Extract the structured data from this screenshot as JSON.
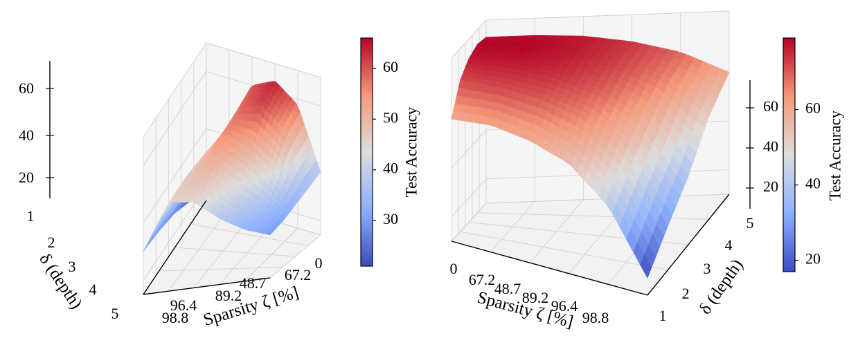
{
  "chart_data": [
    {
      "type": "surface3d",
      "zlabel": "",
      "xlabel": "Sparsity ζ [%]",
      "ylabel": "δ (depth)",
      "x_ticks": [
        "0",
        "67.2",
        "48.7",
        "89.2",
        "96.4",
        "98.8"
      ],
      "y_ticks": [
        "1",
        "2",
        "3",
        "4",
        "5"
      ],
      "z_ticks": [
        "20",
        "40",
        "60"
      ],
      "z_range": [
        15,
        70
      ],
      "colorbar": {
        "label": "Test Accuracy",
        "ticks": [
          "30",
          "40",
          "50",
          "60"
        ],
        "range": [
          21,
          66
        ]
      },
      "grid": true,
      "surface": {
        "x_index": [
          0,
          1,
          2,
          3,
          4,
          5
        ],
        "depth": [
          1,
          2,
          3,
          4,
          5
        ],
        "z": [
          [
            37,
            58,
            64,
            60,
            44,
            21
          ],
          [
            35,
            54,
            61,
            58,
            42,
            23
          ],
          [
            33,
            45,
            52,
            56,
            46,
            27
          ],
          [
            31,
            37,
            43,
            50,
            47,
            29
          ],
          [
            30,
            33,
            38,
            45,
            46,
            30
          ]
        ]
      }
    },
    {
      "type": "surface3d",
      "zlabel": "",
      "xlabel": "Sparsity ζ [%]",
      "ylabel": "δ (depth)",
      "x_ticks": [
        "0",
        "67.2",
        "48.7",
        "89.2",
        "96.4",
        "98.8"
      ],
      "y_ticks": [
        "1",
        "2",
        "3",
        "4",
        "5"
      ],
      "z_ticks": [
        "20",
        "40",
        "60"
      ],
      "z_range": [
        10,
        85
      ],
      "colorbar": {
        "label": "Test Accuracy",
        "ticks": [
          "20",
          "40",
          "60"
        ],
        "range": [
          17,
          79
        ]
      },
      "grid": true,
      "surface": {
        "x_index": [
          0,
          1,
          2,
          3,
          4,
          5
        ],
        "depth": [
          1,
          2,
          3,
          4,
          5
        ],
        "z": [
          [
            60,
            62,
            60,
            55,
            42,
            17
          ],
          [
            72,
            72,
            70,
            65,
            52,
            28
          ],
          [
            77,
            77,
            75,
            70,
            60,
            38
          ],
          [
            79,
            79,
            77,
            73,
            66,
            52
          ],
          [
            78,
            78,
            77,
            74,
            69,
            60
          ]
        ]
      }
    }
  ]
}
